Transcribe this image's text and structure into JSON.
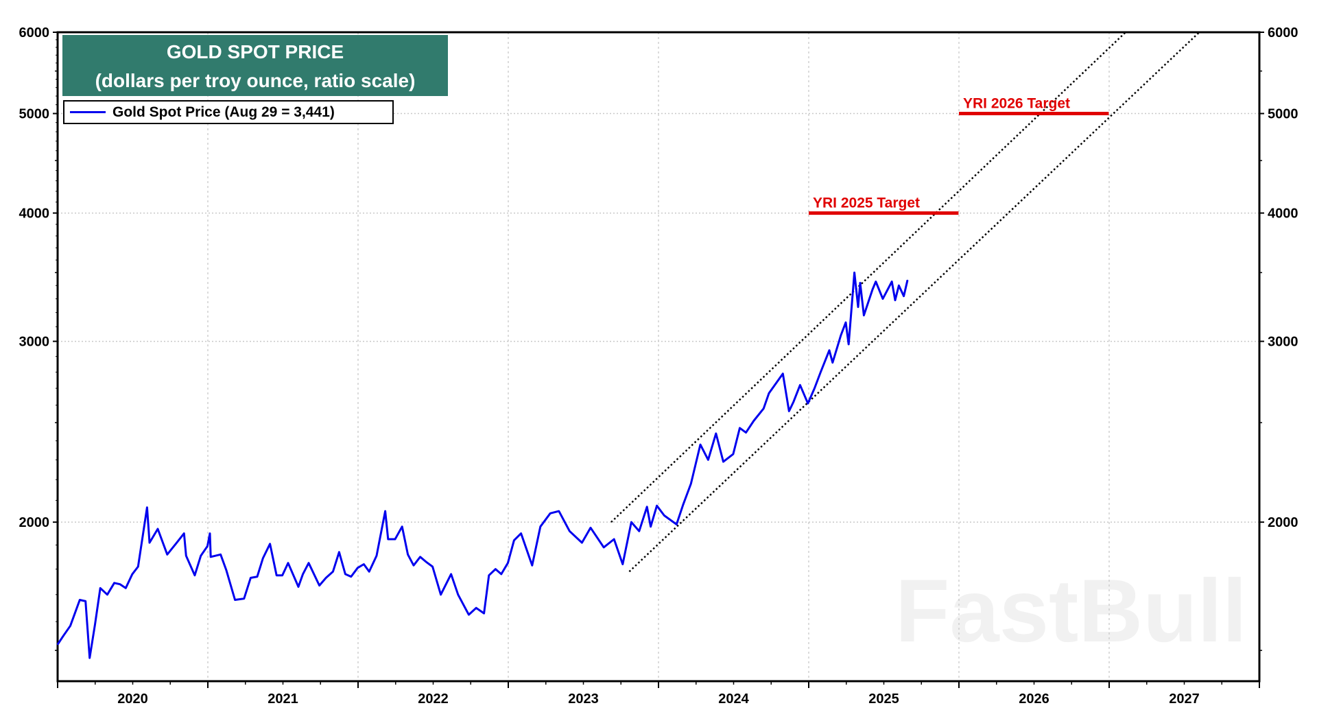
{
  "chart_data": {
    "type": "line",
    "title": "GOLD SPOT PRICE",
    "subtitle": "(dollars per troy ounce, ratio scale)",
    "y_scale": "log",
    "ylim": [
      1400,
      6000
    ],
    "y_ticks": [
      2000,
      3000,
      4000,
      5000,
      6000
    ],
    "y_axis_sides": "left and right",
    "xlim": [
      "2020-01-01",
      "2028-01-01"
    ],
    "x_tick_labels": [
      "2020",
      "2021",
      "2022",
      "2023",
      "2024",
      "2025",
      "2026",
      "2027"
    ],
    "grid": true,
    "legend_position": "top-left",
    "series": [
      {
        "name": "Gold Spot Price (Aug 29 = 3,441)",
        "color": "#0000ee",
        "points": [
          [
            "2020-01-01",
            1520
          ],
          [
            "2020-01-15",
            1550
          ],
          [
            "2020-02-01",
            1585
          ],
          [
            "2020-02-24",
            1680
          ],
          [
            "2020-03-09",
            1675
          ],
          [
            "2020-03-19",
            1475
          ],
          [
            "2020-04-01",
            1590
          ],
          [
            "2020-04-14",
            1725
          ],
          [
            "2020-05-01",
            1700
          ],
          [
            "2020-05-18",
            1745
          ],
          [
            "2020-06-01",
            1740
          ],
          [
            "2020-06-15",
            1725
          ],
          [
            "2020-07-01",
            1780
          ],
          [
            "2020-07-15",
            1810
          ],
          [
            "2020-08-06",
            2067
          ],
          [
            "2020-08-12",
            1910
          ],
          [
            "2020-09-01",
            1970
          ],
          [
            "2020-09-24",
            1860
          ],
          [
            "2020-10-15",
            1905
          ],
          [
            "2020-11-04",
            1950
          ],
          [
            "2020-11-09",
            1855
          ],
          [
            "2020-11-30",
            1775
          ],
          [
            "2020-12-15",
            1855
          ],
          [
            "2020-12-31",
            1895
          ],
          [
            "2021-01-06",
            1950
          ],
          [
            "2021-01-08",
            1850
          ],
          [
            "2021-02-01",
            1860
          ],
          [
            "2021-02-15",
            1795
          ],
          [
            "2021-03-08",
            1680
          ],
          [
            "2021-03-30",
            1685
          ],
          [
            "2021-04-15",
            1765
          ],
          [
            "2021-05-01",
            1770
          ],
          [
            "2021-05-15",
            1845
          ],
          [
            "2021-06-01",
            1905
          ],
          [
            "2021-06-17",
            1775
          ],
          [
            "2021-07-01",
            1775
          ],
          [
            "2021-07-15",
            1825
          ],
          [
            "2021-08-09",
            1730
          ],
          [
            "2021-08-20",
            1780
          ],
          [
            "2021-09-03",
            1825
          ],
          [
            "2021-09-29",
            1735
          ],
          [
            "2021-10-15",
            1765
          ],
          [
            "2021-11-01",
            1790
          ],
          [
            "2021-11-16",
            1870
          ],
          [
            "2021-12-01",
            1780
          ],
          [
            "2021-12-15",
            1770
          ],
          [
            "2021-12-31",
            1805
          ],
          [
            "2022-01-15",
            1820
          ],
          [
            "2022-01-28",
            1790
          ],
          [
            "2022-02-15",
            1855
          ],
          [
            "2022-03-08",
            2050
          ],
          [
            "2022-03-15",
            1925
          ],
          [
            "2022-04-01",
            1925
          ],
          [
            "2022-04-18",
            1980
          ],
          [
            "2022-05-02",
            1860
          ],
          [
            "2022-05-16",
            1815
          ],
          [
            "2022-06-01",
            1850
          ],
          [
            "2022-06-15",
            1830
          ],
          [
            "2022-07-01",
            1810
          ],
          [
            "2022-07-21",
            1700
          ],
          [
            "2022-08-15",
            1780
          ],
          [
            "2022-09-01",
            1700
          ],
          [
            "2022-09-27",
            1625
          ],
          [
            "2022-10-15",
            1650
          ],
          [
            "2022-11-03",
            1630
          ],
          [
            "2022-11-15",
            1775
          ],
          [
            "2022-12-01",
            1800
          ],
          [
            "2022-12-15",
            1780
          ],
          [
            "2022-12-31",
            1825
          ],
          [
            "2023-01-15",
            1920
          ],
          [
            "2023-02-01",
            1950
          ],
          [
            "2023-02-28",
            1815
          ],
          [
            "2023-03-20",
            1980
          ],
          [
            "2023-04-13",
            2040
          ],
          [
            "2023-05-04",
            2050
          ],
          [
            "2023-05-30",
            1960
          ],
          [
            "2023-06-29",
            1910
          ],
          [
            "2023-07-20",
            1975
          ],
          [
            "2023-08-21",
            1890
          ],
          [
            "2023-09-15",
            1925
          ],
          [
            "2023-10-06",
            1820
          ],
          [
            "2023-10-27",
            2000
          ],
          [
            "2023-11-15",
            1960
          ],
          [
            "2023-12-04",
            2070
          ],
          [
            "2023-12-13",
            1980
          ],
          [
            "2023-12-28",
            2075
          ],
          [
            "2024-01-15",
            2030
          ],
          [
            "2024-02-14",
            1990
          ],
          [
            "2024-03-01",
            2080
          ],
          [
            "2024-03-20",
            2180
          ],
          [
            "2024-04-12",
            2380
          ],
          [
            "2024-05-01",
            2300
          ],
          [
            "2024-05-20",
            2440
          ],
          [
            "2024-06-07",
            2290
          ],
          [
            "2024-07-01",
            2330
          ],
          [
            "2024-07-17",
            2470
          ],
          [
            "2024-08-01",
            2445
          ],
          [
            "2024-08-20",
            2510
          ],
          [
            "2024-09-13",
            2580
          ],
          [
            "2024-09-26",
            2670
          ],
          [
            "2024-10-30",
            2790
          ],
          [
            "2024-11-14",
            2565
          ],
          [
            "2024-11-25",
            2620
          ],
          [
            "2024-12-11",
            2720
          ],
          [
            "2024-12-30",
            2610
          ],
          [
            "2025-01-15",
            2700
          ],
          [
            "2025-01-30",
            2800
          ],
          [
            "2025-02-20",
            2940
          ],
          [
            "2025-02-28",
            2860
          ],
          [
            "2025-03-20",
            3040
          ],
          [
            "2025-04-01",
            3130
          ],
          [
            "2025-04-08",
            2980
          ],
          [
            "2025-04-22",
            3500
          ],
          [
            "2025-05-01",
            3240
          ],
          [
            "2025-05-06",
            3420
          ],
          [
            "2025-05-15",
            3180
          ],
          [
            "2025-06-05",
            3370
          ],
          [
            "2025-06-13",
            3430
          ],
          [
            "2025-06-30",
            3300
          ],
          [
            "2025-07-22",
            3430
          ],
          [
            "2025-07-30",
            3290
          ],
          [
            "2025-08-08",
            3400
          ],
          [
            "2025-08-20",
            3320
          ],
          [
            "2025-08-29",
            3441
          ]
        ]
      }
    ],
    "channel_lines": [
      {
        "style": "dotted",
        "color": "#000000",
        "from": [
          "2023-09-08",
          2000
        ],
        "to": [
          "2027-02-10",
          6000
        ]
      },
      {
        "style": "dotted",
        "color": "#000000",
        "from": [
          "2023-10-22",
          1790
        ],
        "to": [
          "2027-08-08",
          6000
        ]
      }
    ],
    "targets": [
      {
        "label": "YRI 2025 Target",
        "value": 4000,
        "from": "2025-01-01",
        "to": "2025-12-31",
        "color": "#e00000"
      },
      {
        "label": "YRI 2026 Target",
        "value": 5000,
        "from": "2026-01-01",
        "to": "2026-12-31",
        "color": "#e00000"
      }
    ]
  },
  "watermark": "FastBull"
}
